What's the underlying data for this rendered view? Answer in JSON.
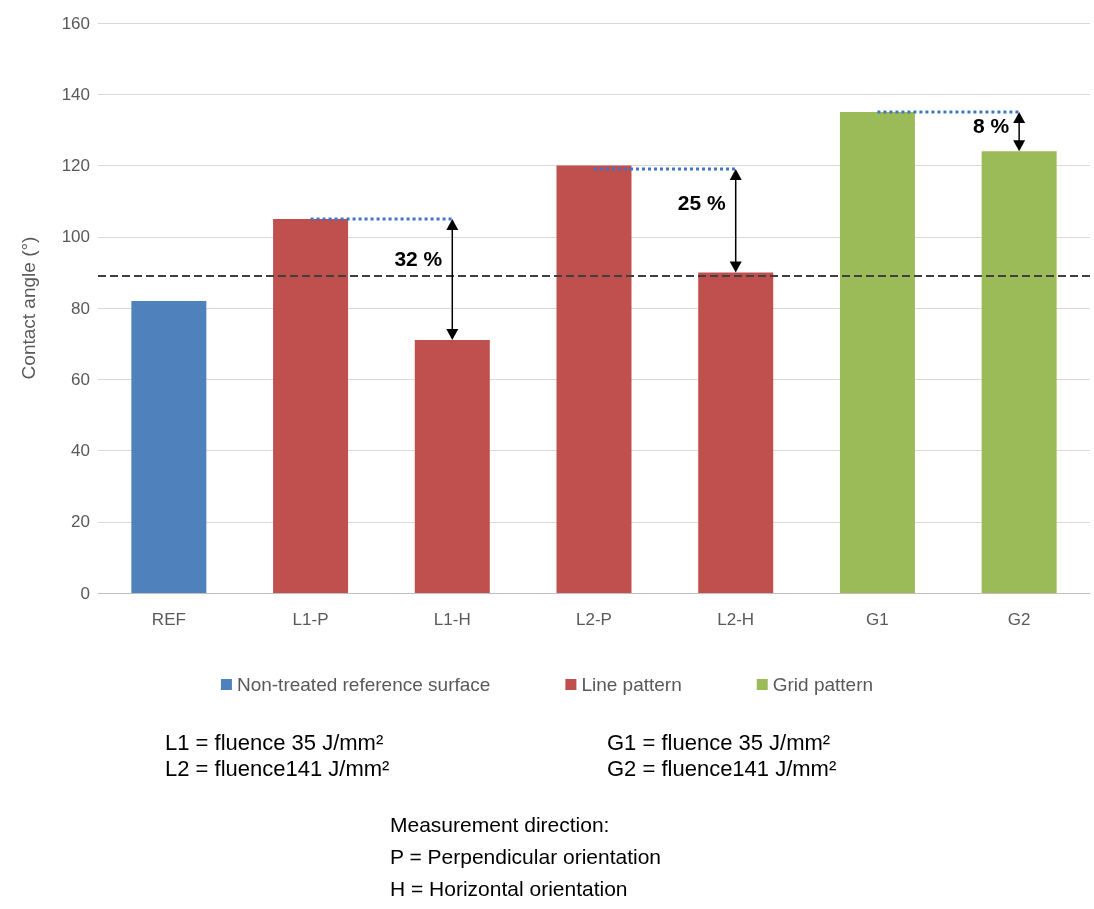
{
  "chart_data": {
    "type": "bar",
    "ylabel": "Contact angle (°)",
    "categories": [
      "REF",
      "L1-P",
      "L1-H",
      "L2-P",
      "L2-H",
      "G1",
      "G2"
    ],
    "series": [
      {
        "name": "Non-treated reference surface",
        "color": "#4f81bd",
        "values": [
          82,
          null,
          null,
          null,
          null,
          null,
          null
        ]
      },
      {
        "name": "Line pattern",
        "color": "#c0504d",
        "values": [
          null,
          105,
          71,
          120,
          90,
          null,
          null
        ]
      },
      {
        "name": "Grid pattern",
        "color": "#9bbb59",
        "values": [
          null,
          null,
          null,
          null,
          null,
          135,
          124
        ]
      },
      {
        "type": "line",
        "color": "#4472c4",
        "line_style": "dotted",
        "marker": "none",
        "x": [
          "L1-P",
          "L1-H"
        ],
        "values": [
          105,
          105
        ]
      },
      {
        "type": "line",
        "color": "#4472c4",
        "line_style": "dotted",
        "marker": "none",
        "x": [
          "L2-P",
          "L2-H"
        ],
        "values": [
          119,
          119
        ]
      },
      {
        "type": "line",
        "color": "#4472c4",
        "line_style": "dotted",
        "marker": "none",
        "x": [
          "G1",
          "G2"
        ],
        "values": [
          135,
          135
        ]
      }
    ],
    "ylim": [
      0,
      160
    ],
    "yticks": [
      0,
      20,
      40,
      60,
      80,
      100,
      120,
      140,
      160
    ],
    "grid": "y",
    "legend": "bottom",
    "ref_lines": [
      {
        "axis": "y",
        "value": 89,
        "color": "#404040",
        "line_style": "dashed"
      }
    ],
    "annotations": [
      "32 %",
      "25 %",
      "8 %",
      "L1 = fluence 35 J/mm²",
      "L2 = fluence141 J/mm²",
      "G1 = fluence 35 J/mm²",
      "G2 = fluence141 J/mm²",
      "Measurement direction:",
      "P = Perpendicular orientation",
      "H = Horizontal orientation"
    ]
  }
}
